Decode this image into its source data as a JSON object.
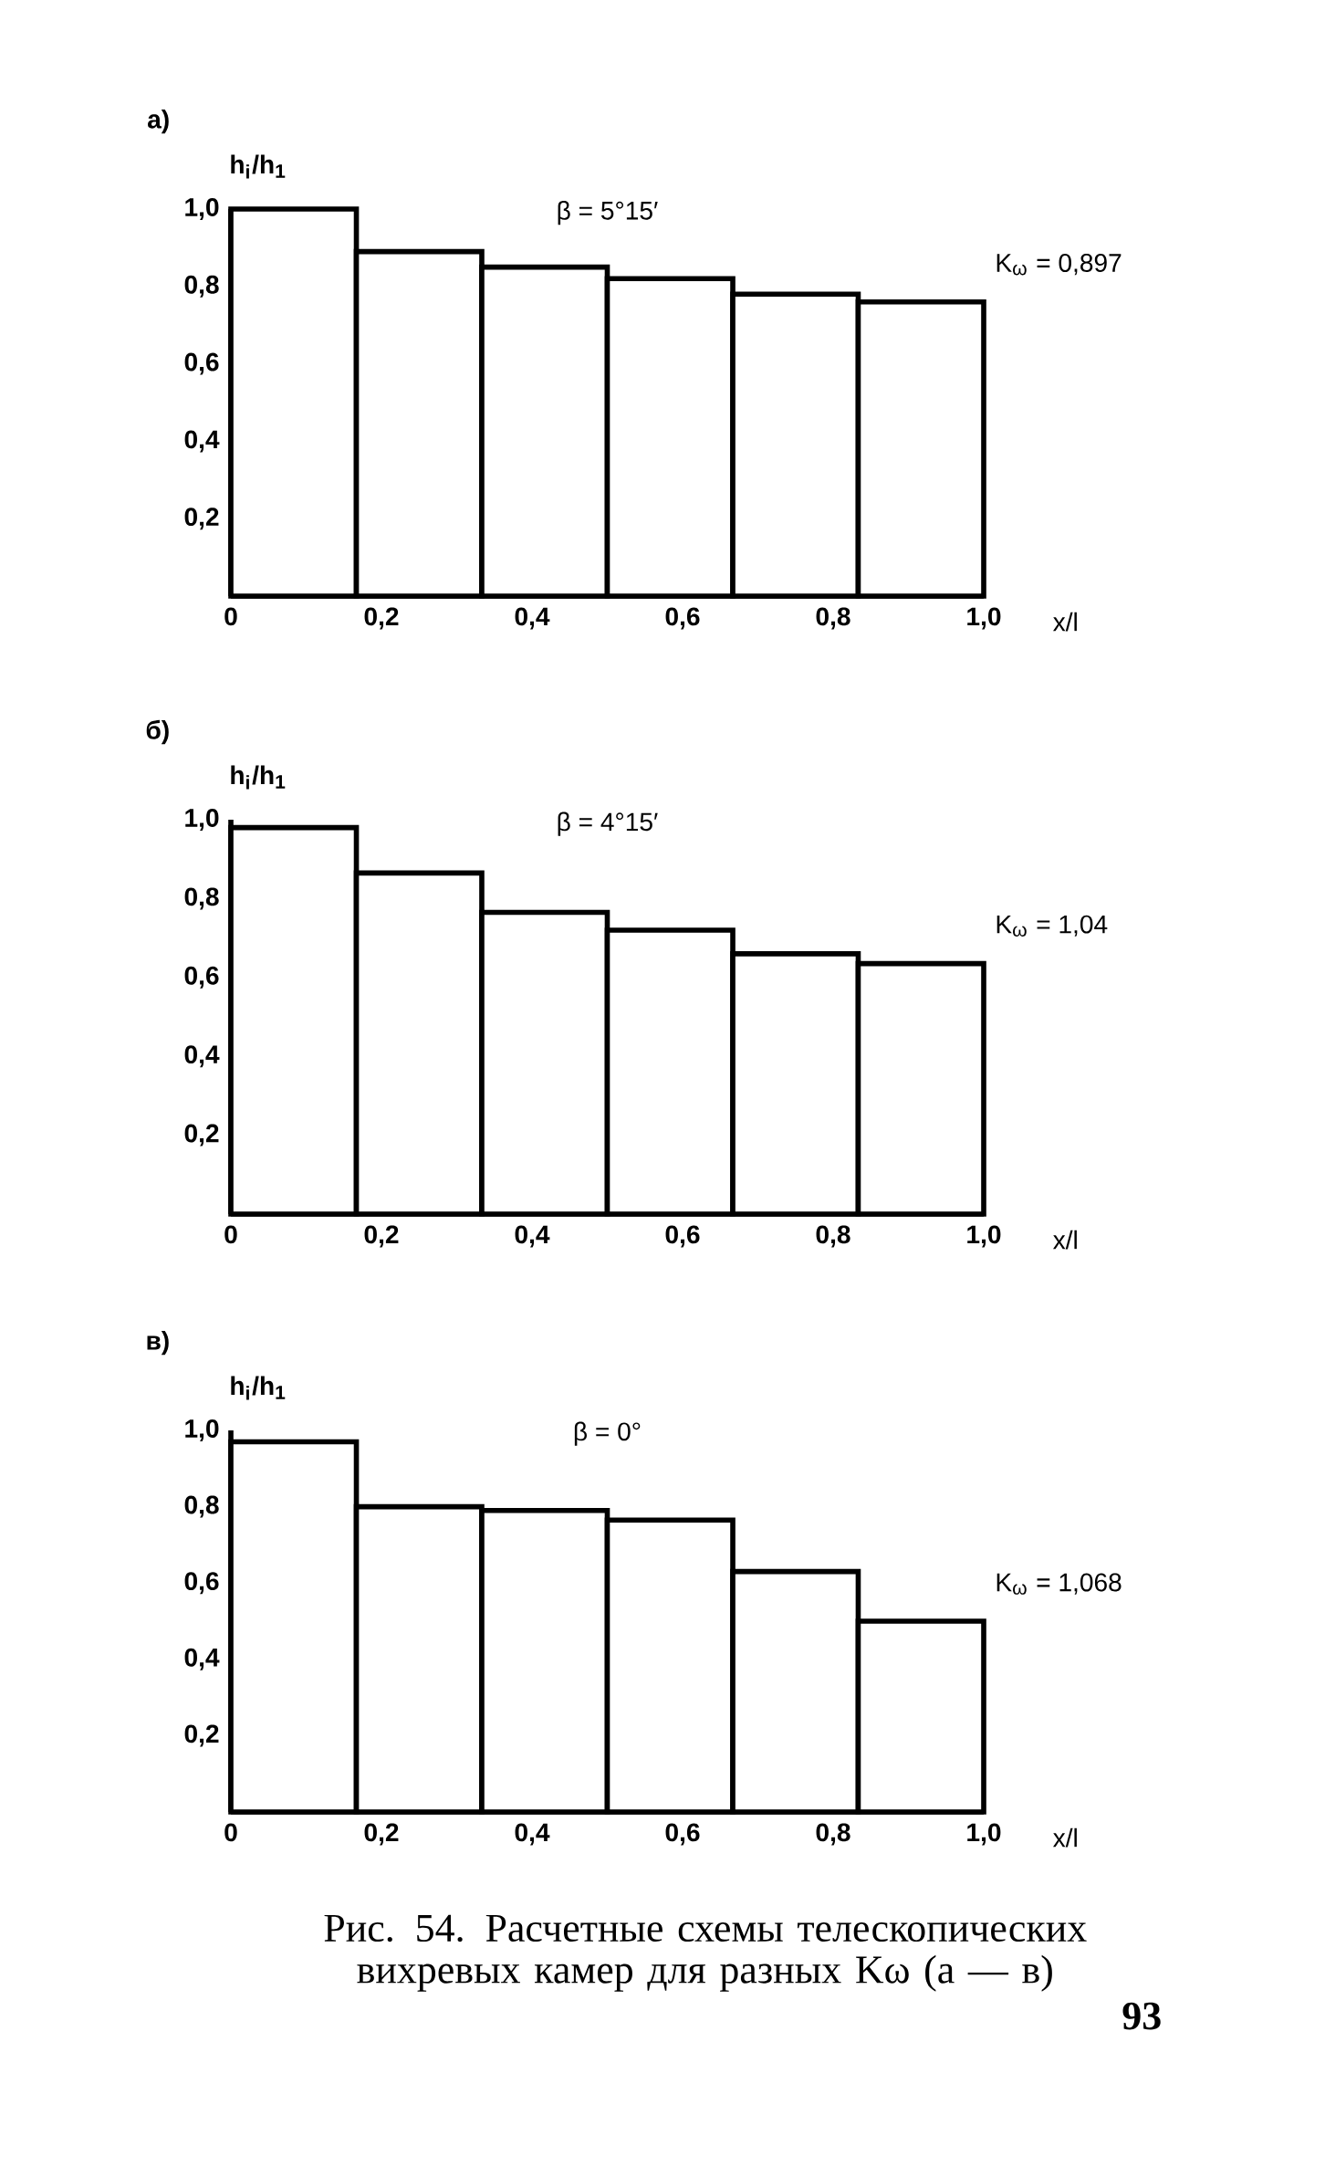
{
  "chart_data": [
    {
      "type": "histogram",
      "title": "а)",
      "ylabel": "h$_{i}$/h$_{1}$",
      "xlabel": "x/l",
      "annotations": [
        "β = 5°15′",
        "K$_{ω}$ = 0,897"
      ],
      "bins": [
        0,
        0.1667,
        0.3333,
        0.5,
        0.6667,
        0.8333,
        1.0
      ],
      "values": [
        1.0,
        0.89,
        0.85,
        0.82,
        0.78,
        0.76
      ],
      "xlim": [
        0,
        1.0
      ],
      "ylim": [
        0,
        1.0
      ],
      "xticks": [
        {
          "value": 0,
          "label": "0"
        },
        {
          "value": 0.2,
          "label": "0,2"
        },
        {
          "value": 0.4,
          "label": "0,4"
        },
        {
          "value": 0.6,
          "label": "0,6"
        },
        {
          "value": 0.8,
          "label": "0,8"
        },
        {
          "value": 1.0,
          "label": "1,0"
        }
      ],
      "yticks": [
        {
          "value": 0.2,
          "label": "0,2"
        },
        {
          "value": 0.4,
          "label": "0,4"
        },
        {
          "value": 0.6,
          "label": "0,6"
        },
        {
          "value": 0.8,
          "label": "0,8"
        },
        {
          "value": 1.0,
          "label": "1,0"
        }
      ]
    },
    {
      "type": "histogram",
      "title": "б)",
      "ylabel": "h$_{i}$/h$_{1}$",
      "xlabel": "x/l",
      "annotations": [
        "β = 4°15′",
        "K$_{ω}$ = 1,04"
      ],
      "bins": [
        0,
        0.1667,
        0.3333,
        0.5,
        0.6667,
        0.8333,
        1.0
      ],
      "values": [
        0.98,
        0.865,
        0.765,
        0.72,
        0.66,
        0.635
      ],
      "xlim": [
        0,
        1.0
      ],
      "ylim": [
        0,
        1.0
      ],
      "xticks": [
        {
          "value": 0,
          "label": "0"
        },
        {
          "value": 0.2,
          "label": "0,2"
        },
        {
          "value": 0.4,
          "label": "0,4"
        },
        {
          "value": 0.6,
          "label": "0,6"
        },
        {
          "value": 0.8,
          "label": "0,8"
        },
        {
          "value": 1.0,
          "label": "1,0"
        }
      ],
      "yticks": [
        {
          "value": 0.2,
          "label": "0,2"
        },
        {
          "value": 0.4,
          "label": "0,4"
        },
        {
          "value": 0.6,
          "label": "0,6"
        },
        {
          "value": 0.8,
          "label": "0,8"
        },
        {
          "value": 1.0,
          "label": "1,0"
        }
      ]
    },
    {
      "type": "histogram",
      "title": "в)",
      "ylabel": "h$_{i}$/h$_{1}$",
      "xlabel": "x/l",
      "annotations": [
        "β = 0°",
        "K$_{ω}$ = 1,068",
        "Рис. 54. Расчетные схемы телескопических вихревых камер для разных Kω (а — в)",
        "93"
      ],
      "bins": [
        0,
        0.1667,
        0.3333,
        0.5,
        0.6667,
        0.8333,
        1.0
      ],
      "values": [
        0.97,
        0.8,
        0.79,
        0.765,
        0.63,
        0.5
      ],
      "xlim": [
        0,
        1.0
      ],
      "ylim": [
        0,
        1.0
      ],
      "xticks": [
        {
          "value": 0,
          "label": "0"
        },
        {
          "value": 0.2,
          "label": "0,2"
        },
        {
          "value": 0.4,
          "label": "0,4"
        },
        {
          "value": 0.6,
          "label": "0,6"
        },
        {
          "value": 0.8,
          "label": "0,8"
        },
        {
          "value": 1.0,
          "label": "1,0"
        }
      ],
      "yticks": [
        {
          "value": 0.2,
          "label": "0,2"
        },
        {
          "value": 0.4,
          "label": "0,4"
        },
        {
          "value": 0.6,
          "label": "0,6"
        },
        {
          "value": 0.8,
          "label": "0,8"
        },
        {
          "value": 1.0,
          "label": "1,0"
        }
      ]
    }
  ]
}
